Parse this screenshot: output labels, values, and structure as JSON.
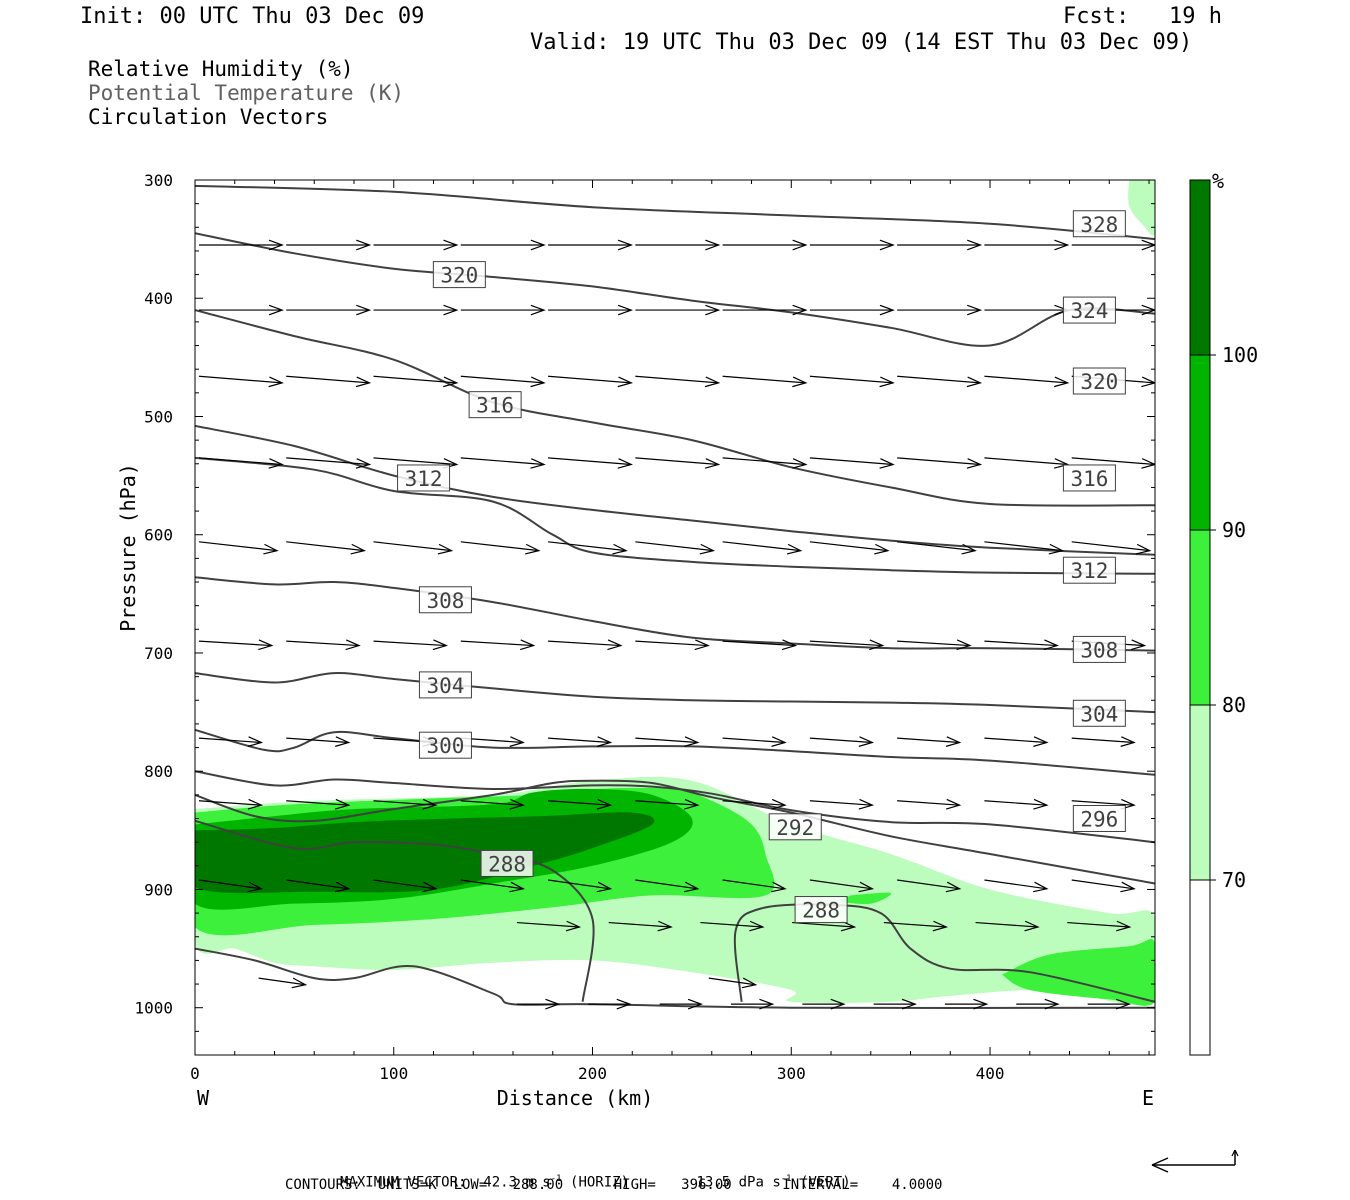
{
  "header": {
    "init": "Init: 00 UTC Thu 03 Dec 09",
    "fcst": "Fcst:   19 h",
    "valid": "Valid: 19 UTC Thu 03 Dec 09 (14 EST Thu 03 Dec 09)"
  },
  "legend": {
    "line1": "Relative Humidity (%)",
    "line2": "Potential Temperature (K)",
    "line3": "Circulation Vectors"
  },
  "colors": {
    "rh70": "#bcfcbc",
    "rh80": "#3cf03c",
    "rh90": "#00b400",
    "rh100": "#007800",
    "isentrope": "#404040"
  },
  "footer": {
    "max_vector_label": "MAXIMUM VECTOR:",
    "max_vector_horiz": "42.3 m s",
    "horiz_tag": "(HORIZ)",
    "max_vector_vert": "13.5 dPa s",
    "vert_tag": "(VERT)",
    "contours": "CONTOURS:  UNITS=K  LOW=   288.00      HIGH=   396.00      INTERVAL=    4.0000",
    "exp": "-1"
  },
  "chart_data": {
    "type": "cross-section",
    "xlabel": "Distance (km)",
    "ylabel": "Pressure (hPa)",
    "xlim": [
      0,
      483
    ],
    "ylim": [
      1040,
      300
    ],
    "xticks": [
      0,
      100,
      200,
      300,
      400
    ],
    "yticks": [
      300,
      400,
      500,
      600,
      700,
      800,
      900,
      1000
    ],
    "x_end_labels": {
      "left": "W",
      "right": "E"
    },
    "colorbar": {
      "unit": "%",
      "levels": [
        70,
        80,
        90,
        100
      ]
    },
    "isentropes": [
      {
        "value": 328,
        "points": [
          [
            0,
            305
          ],
          [
            100,
            310
          ],
          [
            200,
            323
          ],
          [
            300,
            330
          ],
          [
            400,
            337
          ],
          [
            483,
            350
          ]
        ]
      },
      {
        "value": 324,
        "points": [
          [
            0,
            345
          ],
          [
            50,
            362
          ],
          [
            100,
            375
          ],
          [
            150,
            382
          ],
          [
            200,
            390
          ],
          [
            250,
            402
          ],
          [
            300,
            412
          ],
          [
            350,
            425
          ],
          [
            400,
            440
          ],
          [
            440,
            410
          ],
          [
            483,
            413
          ]
        ]
      },
      {
        "value": 320,
        "points": [
          [
            0,
            410
          ],
          [
            50,
            432
          ],
          [
            100,
            452
          ],
          [
            150,
            488
          ],
          [
            200,
            505
          ],
          [
            250,
            520
          ],
          [
            300,
            543
          ],
          [
            350,
            560
          ],
          [
            400,
            574
          ],
          [
            483,
            575
          ]
        ]
      },
      {
        "value": 316,
        "points": [
          [
            0,
            508
          ],
          [
            50,
            525
          ],
          [
            100,
            550
          ],
          [
            150,
            568
          ],
          [
            200,
            579
          ],
          [
            250,
            588
          ],
          [
            300,
            597
          ],
          [
            350,
            605
          ],
          [
            400,
            611
          ],
          [
            483,
            617
          ]
        ]
      },
      {
        "value": 312,
        "points": [
          [
            0,
            535
          ],
          [
            60,
            545
          ],
          [
            100,
            563
          ],
          [
            150,
            572
          ],
          [
            180,
            600
          ],
          [
            200,
            615
          ],
          [
            250,
            623
          ],
          [
            300,
            627
          ],
          [
            350,
            630
          ],
          [
            400,
            632
          ],
          [
            483,
            633
          ]
        ]
      },
      {
        "value": 308,
        "points": [
          [
            0,
            636
          ],
          [
            40,
            642
          ],
          [
            70,
            640
          ],
          [
            100,
            645
          ],
          [
            150,
            657
          ],
          [
            200,
            673
          ],
          [
            250,
            687
          ],
          [
            300,
            692
          ],
          [
            350,
            696
          ],
          [
            400,
            696
          ],
          [
            483,
            698
          ]
        ]
      },
      {
        "value": 304,
        "points": [
          [
            0,
            717
          ],
          [
            40,
            725
          ],
          [
            70,
            717
          ],
          [
            100,
            722
          ],
          [
            150,
            730
          ],
          [
            200,
            737
          ],
          [
            250,
            740
          ],
          [
            300,
            741
          ],
          [
            350,
            742
          ],
          [
            400,
            744
          ],
          [
            483,
            750
          ]
        ]
      },
      {
        "value": 300,
        "points": [
          [
            0,
            765
          ],
          [
            35,
            782
          ],
          [
            50,
            780
          ],
          [
            70,
            767
          ],
          [
            100,
            772
          ],
          [
            150,
            780
          ],
          [
            200,
            779
          ],
          [
            250,
            779
          ],
          [
            300,
            783
          ],
          [
            350,
            788
          ],
          [
            400,
            791
          ],
          [
            483,
            803
          ]
        ]
      },
      {
        "value": 296,
        "points": [
          [
            0,
            800
          ],
          [
            40,
            812
          ],
          [
            70,
            807
          ],
          [
            100,
            810
          ],
          [
            150,
            815
          ],
          [
            200,
            812
          ],
          [
            230,
            813
          ],
          [
            260,
            819
          ],
          [
            300,
            833
          ],
          [
            350,
            843
          ],
          [
            400,
            845
          ],
          [
            483,
            860
          ]
        ]
      },
      {
        "value": 292,
        "points": [
          [
            0,
            820
          ],
          [
            30,
            838
          ],
          [
            60,
            842
          ],
          [
            100,
            832
          ],
          [
            150,
            820
          ],
          [
            180,
            810
          ],
          [
            200,
            808
          ],
          [
            230,
            810
          ],
          [
            260,
            822
          ],
          [
            300,
            835
          ],
          [
            350,
            855
          ],
          [
            400,
            870
          ],
          [
            483,
            895
          ]
        ]
      },
      {
        "value": 288,
        "points": [
          [
            0,
            842
          ],
          [
            50,
            865
          ],
          [
            80,
            860
          ],
          [
            120,
            862
          ],
          [
            150,
            870
          ],
          [
            180,
            884
          ],
          [
            200,
            925
          ],
          [
            195,
            995
          ]
        ]
      },
      {
        "value": 288,
        "points": [
          [
            275,
            995
          ],
          [
            272,
            935
          ],
          [
            285,
            916
          ],
          [
            320,
            913
          ],
          [
            345,
            920
          ],
          [
            360,
            950
          ],
          [
            380,
            967
          ],
          [
            420,
            970
          ],
          [
            483,
            995
          ]
        ]
      },
      {
        "value": 288,
        "points": [
          [
            0,
            950
          ],
          [
            30,
            960
          ],
          [
            60,
            975
          ],
          [
            80,
            975
          ],
          [
            110,
            965
          ],
          [
            150,
            988
          ],
          [
            160,
            997
          ],
          [
            200,
            997
          ],
          [
            300,
            1000
          ],
          [
            483,
            1000
          ]
        ]
      }
    ],
    "labels": [
      {
        "text": "328",
        "x": 455,
        "p": 337
      },
      {
        "text": "320",
        "x": 133,
        "p": 380
      },
      {
        "text": "324",
        "x": 450,
        "p": 410
      },
      {
        "text": "320",
        "x": 455,
        "p": 470
      },
      {
        "text": "316",
        "x": 151,
        "p": 490
      },
      {
        "text": "312",
        "x": 115,
        "p": 552
      },
      {
        "text": "316",
        "x": 450,
        "p": 552
      },
      {
        "text": "312",
        "x": 450,
        "p": 630
      },
      {
        "text": "308",
        "x": 126,
        "p": 655
      },
      {
        "text": "308",
        "x": 455,
        "p": 697
      },
      {
        "text": "304",
        "x": 126,
        "p": 727
      },
      {
        "text": "304",
        "x": 455,
        "p": 751
      },
      {
        "text": "300",
        "x": 126,
        "p": 778
      },
      {
        "text": "296",
        "x": 455,
        "p": 840
      },
      {
        "text": "292",
        "x": 302,
        "p": 847
      },
      {
        "text": "288",
        "x": 157,
        "p": 878
      },
      {
        "text": "288",
        "x": 315,
        "p": 917
      }
    ],
    "rh_regions": [
      {
        "level": 70,
        "points": [
          [
            0,
            832
          ],
          [
            60,
            825
          ],
          [
            150,
            820
          ],
          [
            200,
            808
          ],
          [
            250,
            808
          ],
          [
            300,
            845
          ],
          [
            350,
            870
          ],
          [
            400,
            900
          ],
          [
            460,
            920
          ],
          [
            483,
            923
          ],
          [
            483,
            995
          ],
          [
            430,
            985
          ],
          [
            380,
            990
          ],
          [
            350,
            995
          ],
          [
            300,
            995
          ],
          [
            300,
            985
          ],
          [
            250,
            970
          ],
          [
            200,
            960
          ],
          [
            150,
            962
          ],
          [
            100,
            968
          ],
          [
            60,
            965
          ],
          [
            40,
            962
          ],
          [
            20,
            950
          ],
          [
            0,
            945
          ]
        ]
      },
      {
        "level": 70,
        "points": [
          [
            470,
            300
          ],
          [
            483,
            300
          ],
          [
            483,
            345
          ],
          [
            477,
            338
          ],
          [
            470,
            322
          ]
        ]
      },
      {
        "level": 80,
        "points": [
          [
            0,
            835
          ],
          [
            50,
            828
          ],
          [
            120,
            823
          ],
          [
            170,
            820
          ],
          [
            200,
            815
          ],
          [
            240,
            815
          ],
          [
            260,
            825
          ],
          [
            280,
            845
          ],
          [
            287,
            870
          ],
          [
            287,
            905
          ],
          [
            230,
            905
          ],
          [
            180,
            915
          ],
          [
            120,
            925
          ],
          [
            60,
            930
          ],
          [
            0,
            932
          ]
        ]
      },
      {
        "level": 80,
        "points": [
          [
            406,
            972
          ],
          [
            430,
            955
          ],
          [
            470,
            948
          ],
          [
            483,
            945
          ],
          [
            483,
            995
          ],
          [
            460,
            993
          ],
          [
            420,
            985
          ]
        ]
      },
      {
        "level": 80,
        "points": [
          [
            330,
            905
          ],
          [
            350,
            903
          ],
          [
            340,
            912
          ],
          [
            325,
            910
          ]
        ]
      },
      {
        "level": 90,
        "points": [
          [
            0,
            845
          ],
          [
            40,
            838
          ],
          [
            80,
            832
          ],
          [
            150,
            828
          ],
          [
            170,
            818
          ],
          [
            200,
            815
          ],
          [
            230,
            820
          ],
          [
            250,
            840
          ],
          [
            240,
            860
          ],
          [
            200,
            880
          ],
          [
            150,
            895
          ],
          [
            100,
            908
          ],
          [
            50,
            912
          ],
          [
            0,
            912
          ]
        ]
      },
      {
        "level": 100,
        "points": [
          [
            0,
            850
          ],
          [
            40,
            848
          ],
          [
            80,
            843
          ],
          [
            130,
            840
          ],
          [
            175,
            838
          ],
          [
            220,
            835
          ],
          [
            230,
            845
          ],
          [
            200,
            865
          ],
          [
            170,
            880
          ],
          [
            120,
            900
          ],
          [
            60,
            902
          ],
          [
            0,
            898
          ]
        ]
      }
    ],
    "vector_rows": [
      {
        "p": 355,
        "x0": 0,
        "n": 11,
        "dx": 32,
        "dy": 0
      },
      {
        "p": 410,
        "x0": 0,
        "n": 11,
        "dx": 32,
        "dy": 0
      },
      {
        "p": 466,
        "x0": 0,
        "n": 11,
        "dx": 32,
        "dy": 3
      },
      {
        "p": 535,
        "x0": 0,
        "n": 11,
        "dx": 32,
        "dy": 3
      },
      {
        "p": 606,
        "x0": 0,
        "n": 11,
        "dx": 30,
        "dy": 4
      },
      {
        "p": 690,
        "x0": 0,
        "n": 11,
        "dx": 28,
        "dy": 2
      },
      {
        "p": 772,
        "x0": 0,
        "n": 11,
        "dx": 24,
        "dy": 2
      },
      {
        "p": 825,
        "x0": 0,
        "n": 11,
        "dx": 24,
        "dy": 2
      },
      {
        "p": 892,
        "x0": 0,
        "n": 11,
        "dx": 24,
        "dy": 4
      },
      {
        "p": 928,
        "x0": 160,
        "n": 7,
        "dx": 24,
        "dy": 2
      },
      {
        "p": 975,
        "x0": 30,
        "n": 2,
        "dx": 18,
        "dy": 3
      },
      {
        "p": 997,
        "x0": 160,
        "n": 9,
        "dx": 16,
        "dy": 0
      }
    ]
  }
}
